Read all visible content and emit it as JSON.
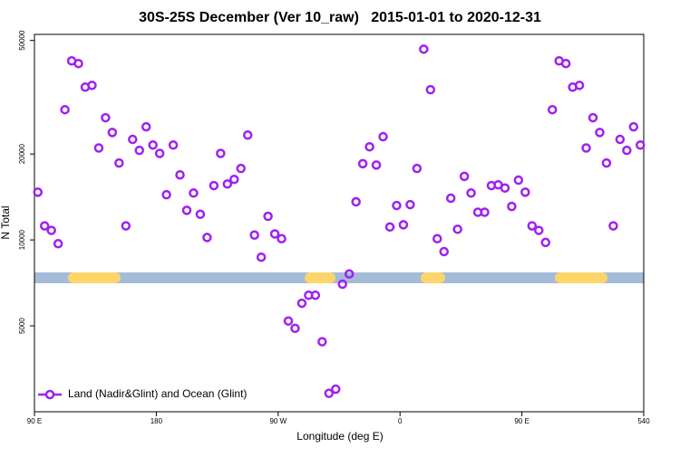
{
  "chart_data": {
    "type": "scatter",
    "title": "30S-25S December (Ver 10_raw)   2015-01-01 to 2020-12-31",
    "x_label": "Longitude (deg E)",
    "y_label": "N Total",
    "x": [
      92.5,
      97.5,
      102.5,
      107.5,
      112.5,
      117.5,
      122.5,
      127.5,
      132.5,
      137.5,
      142.5,
      147.5,
      152.5,
      157.5,
      162.5,
      167.5,
      172.5,
      177.5,
      182.5,
      187.5,
      192.5,
      197.5,
      202.5,
      207.5,
      212.5,
      217.5,
      222.5,
      227.5,
      232.5,
      237.5,
      242.5,
      247.5,
      252.5,
      257.5,
      262.5,
      267.5,
      272.5,
      277.5,
      282.5,
      287.5,
      292.5,
      297.5,
      302.5,
      307.5,
      312.5,
      317.5,
      322.5,
      327.5,
      332.5,
      337.5,
      342.5,
      347.5,
      352.5,
      357.5,
      362.5,
      367.5,
      372.5,
      377.5,
      382.5,
      387.5,
      392.5,
      397.5,
      402.5,
      407.5,
      412.5,
      417.5,
      422.5,
      427.5,
      432.5,
      437.5,
      442.5,
      447.5,
      452.5,
      457.5,
      462.5,
      467.5,
      472.5,
      477.5,
      482.5,
      487.5,
      492.5,
      497.5,
      502.5,
      507.5,
      512.5,
      517.5,
      522.5,
      527.5,
      532.5,
      537.5
    ],
    "series": [
      {
        "name": "Land (Nadir&Glint) and Ocean (Glint)",
        "color": "#a020f0",
        "values": [
          14700,
          11200,
          10800,
          9700,
          28600,
          42400,
          41500,
          34300,
          34800,
          21000,
          26800,
          23800,
          18600,
          11200,
          22500,
          20600,
          24900,
          21500,
          20100,
          14400,
          21500,
          16900,
          12700,
          14600,
          12300,
          10200,
          15500,
          20100,
          15700,
          16300,
          17800,
          23300,
          10400,
          8700,
          12100,
          10500,
          10100,
          5200,
          4900,
          6000,
          6400,
          6400,
          4400,
          2900,
          3000,
          7000,
          7600,
          13600,
          18500,
          21200,
          18300,
          23000,
          11100,
          13200,
          11300,
          13300,
          17800,
          46600,
          33600,
          10100,
          9100,
          14000,
          10900,
          16700,
          14600,
          12500,
          12500,
          15500,
          15600,
          15200,
          13100,
          16200,
          14700,
          11200,
          10800,
          9800,
          28600,
          42400,
          41500,
          34300,
          34800,
          21000,
          26800,
          23800,
          18600,
          11200,
          22500,
          20600,
          24900,
          21500
        ]
      }
    ],
    "xlim": [
      90,
      540
    ],
    "xticks": [
      {
        "value": 90,
        "label": "90 E"
      },
      180,
      {
        "value": 270,
        "label": "90 W"
      },
      {
        "value": 360,
        "label": "0"
      },
      {
        "value": 450,
        "label": "90 E"
      },
      540
    ],
    "ylim": [
      2500,
      52500
    ],
    "yticks": [
      5000,
      10000,
      20000,
      50000
    ],
    "log_y": true,
    "legend": "bottom-left"
  }
}
